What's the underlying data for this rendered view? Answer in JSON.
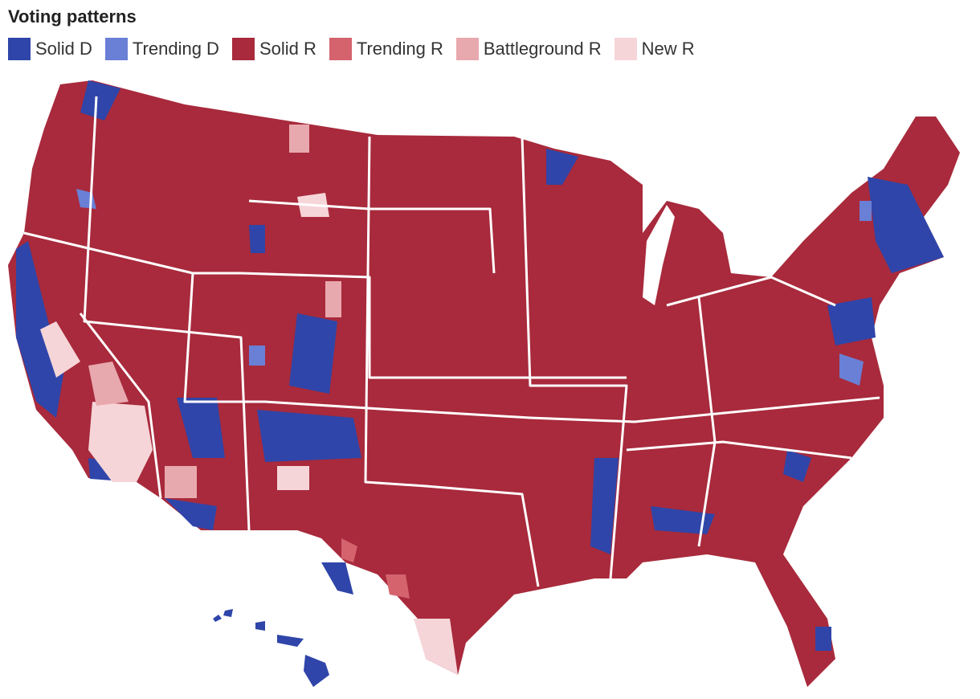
{
  "title": "Voting patterns",
  "legend": [
    {
      "name": "Solid D",
      "color": "#2f45a9"
    },
    {
      "name": "Trending D",
      "color": "#6a7fd6"
    },
    {
      "name": "Solid R",
      "color": "#a82a3c"
    },
    {
      "name": "Trending R",
      "color": "#d4636e"
    },
    {
      "name": "Battleground R",
      "color": "#e8a9ae"
    },
    {
      "name": "New R",
      "color": "#f6d5d8"
    }
  ]
}
